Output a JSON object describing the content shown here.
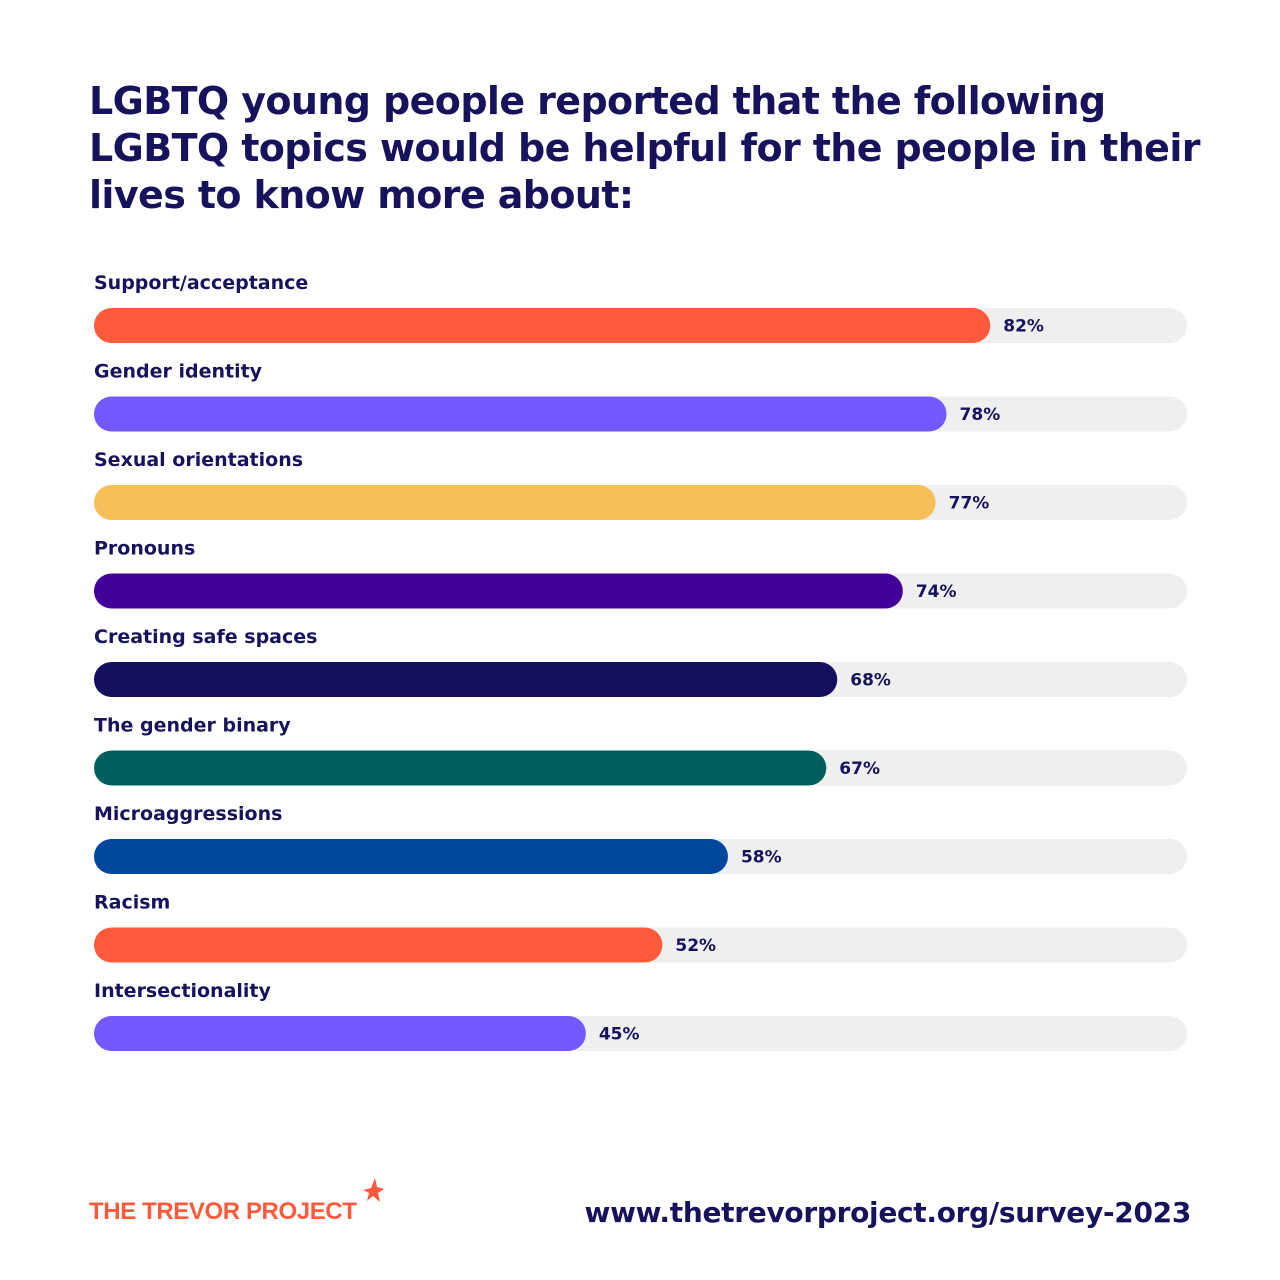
{
  "title": "LGBTQ young people reported that the following LGBTQ topics would be helpful for the people in their lives to know more about:",
  "chart_data": {
    "type": "bar",
    "orientation": "horizontal",
    "title": "LGBTQ young people reported that the following LGBTQ topics would be helpful for the people in their lives to know more about:",
    "categories": [
      "Support/acceptance",
      "Gender identity",
      "Sexual orientations",
      "Pronouns",
      "Creating safe spaces",
      "The gender binary",
      "Microaggressions",
      "Racism",
      "Intersectionality"
    ],
    "values": [
      82,
      78,
      77,
      74,
      68,
      67,
      58,
      52,
      45
    ],
    "value_labels": [
      "82%",
      "78%",
      "77%",
      "74%",
      "68%",
      "67%",
      "58%",
      "52%",
      "45%"
    ],
    "bar_colors": [
      "#ff5a3c",
      "#7558ff",
      "#f7be5a",
      "#420099",
      "#130f5e",
      "#00605f",
      "#00469b",
      "#ff5a3c",
      "#7558ff"
    ],
    "track_color": "#efefef",
    "xlim": [
      0,
      100
    ],
    "grid": false,
    "legend": "none"
  },
  "footer": {
    "logo_text": "THE TREVOR PROJECT",
    "logo_color": "#ff5a3c",
    "url": "www.thetrevorproject.org/survey-2023"
  }
}
